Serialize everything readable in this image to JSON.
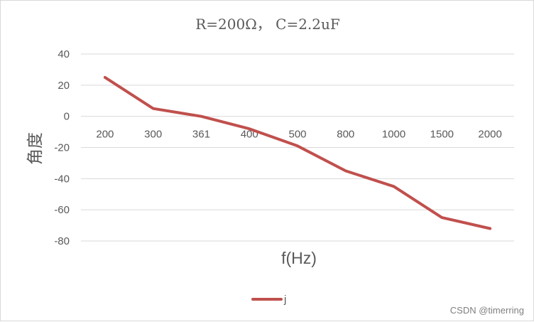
{
  "chart_data": {
    "type": "line",
    "title": "R=200Ω， C=2.2uF",
    "xlabel": "f(Hz)",
    "ylabel": "角度",
    "categories": [
      "200",
      "300",
      "361",
      "400",
      "500",
      "800",
      "1000",
      "1500",
      "2000"
    ],
    "series": [
      {
        "name": "j",
        "values": [
          25,
          5,
          0,
          -8,
          -19,
          -35,
          -45,
          -65,
          -72
        ],
        "color": "#c0504d"
      }
    ],
    "ylim": [
      -80,
      40
    ],
    "yticks": [
      "40",
      "20",
      "0",
      "-20",
      "-40",
      "-60",
      "-80"
    ],
    "grid": true,
    "legend_position": "bottom"
  },
  "watermark": "CSDN @timerring"
}
